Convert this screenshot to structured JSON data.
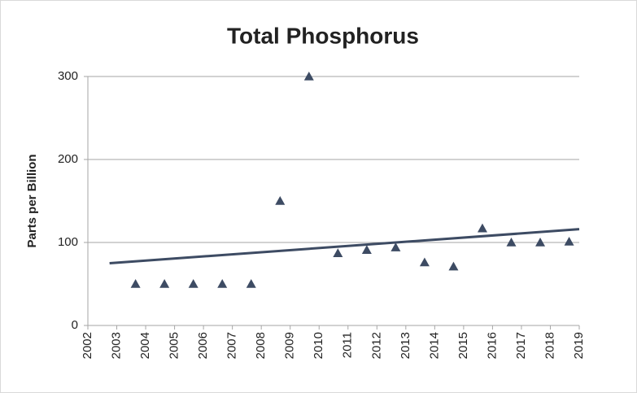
{
  "chart_data": {
    "type": "scatter",
    "title": "Total Phosphorus",
    "y_label": "Parts per Billion",
    "x": [
      2003.65,
      2004.65,
      2005.65,
      2006.65,
      2007.65,
      2008.65,
      2009.65,
      2010.65,
      2011.65,
      2012.65,
      2013.65,
      2014.65,
      2015.65,
      2016.65,
      2017.65,
      2018.65
    ],
    "values": [
      50,
      50,
      50,
      50,
      50,
      150,
      300,
      87,
      91,
      94,
      76,
      71,
      117,
      100,
      100,
      101
    ],
    "color": "#3d4b63",
    "marker": "triangle",
    "trendline": {
      "x": [
        2002.75,
        2019
      ],
      "values": [
        75,
        116
      ],
      "color": "#3d4b63"
    },
    "xlim": [
      2002,
      2019
    ],
    "xticks": [
      2002,
      2003,
      2004,
      2005,
      2006,
      2007,
      2008,
      2009,
      2010,
      2011,
      2012,
      2013,
      2014,
      2015,
      2016,
      2017,
      2018,
      2019
    ],
    "ylim": [
      0,
      300
    ],
    "yticks": [
      0,
      100,
      200,
      300
    ],
    "grid": true
  }
}
